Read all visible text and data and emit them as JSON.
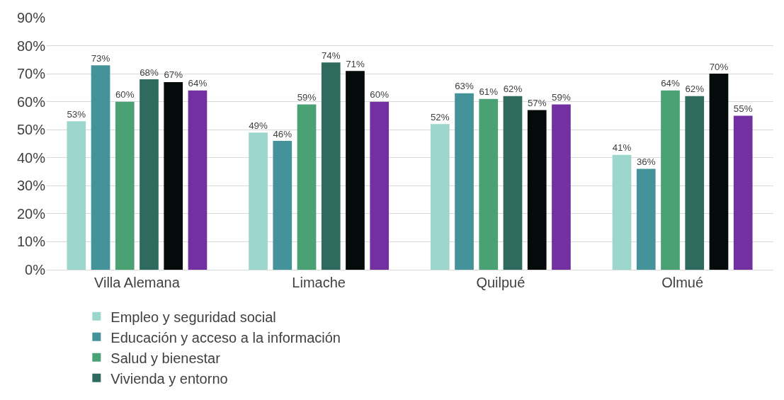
{
  "chart_data": {
    "type": "bar",
    "categories": [
      "Villa Alemana",
      "Limache",
      "Quilpué",
      "Olmué"
    ],
    "series": [
      {
        "name": "Empleo y seguridad social",
        "color": "#9dd6cc",
        "values": [
          53,
          49,
          52,
          41
        ],
        "value_labels": [
          "53%",
          "49%",
          "52%",
          "41%"
        ]
      },
      {
        "name": "Educación y acceso a la información",
        "color": "#45939a",
        "values": [
          73,
          46,
          63,
          36
        ],
        "value_labels": [
          "73%",
          "46%",
          "63%",
          "36%"
        ]
      },
      {
        "name": "Salud y bienestar",
        "color": "#4aa174",
        "values": [
          60,
          59,
          61,
          64
        ],
        "value_labels": [
          "60%",
          "59%",
          "61%",
          "64%"
        ]
      },
      {
        "name": "Vivienda y entorno",
        "color": "#2e6a5e",
        "values": [
          68,
          74,
          62,
          62
        ],
        "value_labels": [
          "68%",
          "74%",
          "62%",
          "62%"
        ]
      },
      {
        "color": "#050a0a",
        "values": [
          67,
          71,
          57,
          70
        ],
        "value_labels": [
          "67%",
          "71%",
          "57%",
          "70%"
        ]
      },
      {
        "color": "#7330a0",
        "values": [
          64,
          60,
          59,
          55
        ],
        "value_labels": [
          "64%",
          "60%",
          "59%",
          "55%"
        ]
      }
    ],
    "ylim": [
      0,
      90
    ],
    "yticks": [
      {
        "value": 0,
        "label": "0%"
      },
      {
        "value": 10,
        "label": "10%"
      },
      {
        "value": 20,
        "label": "20%"
      },
      {
        "value": 30,
        "label": "30%"
      },
      {
        "value": 40,
        "label": "40%"
      },
      {
        "value": 50,
        "label": "50%"
      },
      {
        "value": 60,
        "label": "60%"
      },
      {
        "value": 70,
        "label": "70%"
      },
      {
        "value": 80,
        "label": "80%"
      },
      {
        "value": 90,
        "label": "90%"
      }
    ],
    "grid": "y",
    "legend": "bottom"
  }
}
